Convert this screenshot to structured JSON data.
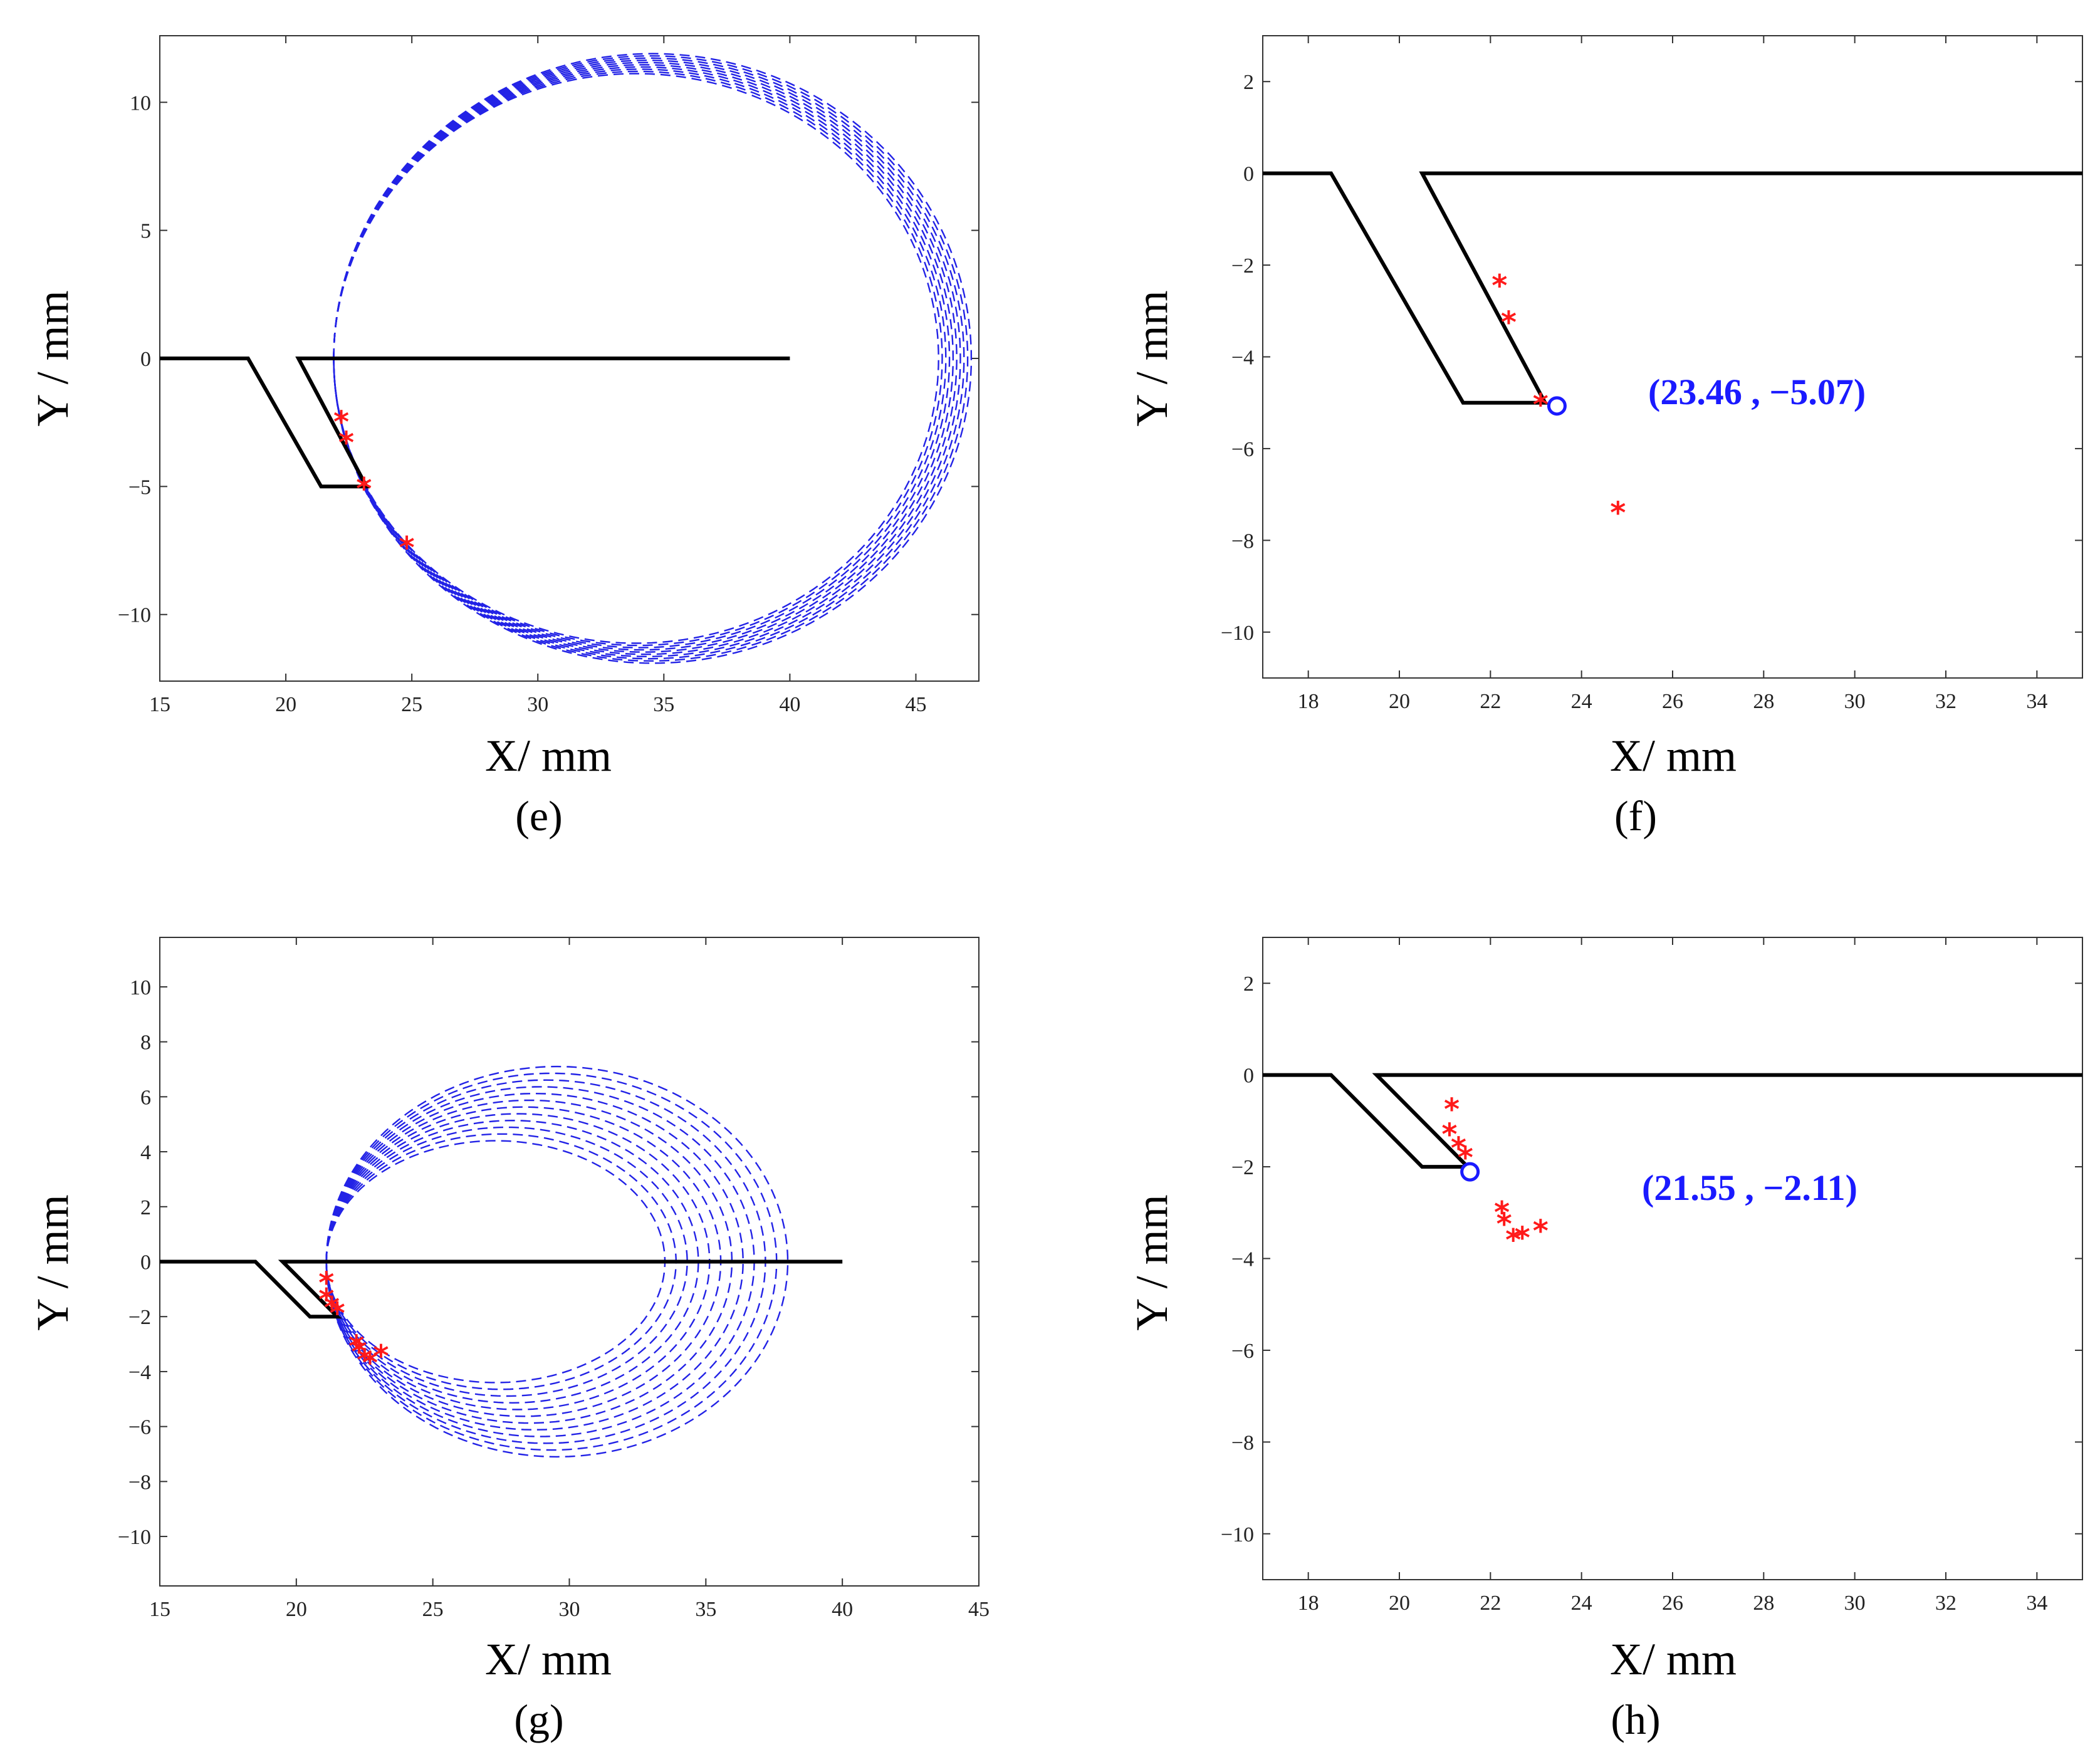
{
  "colors": {
    "geometry": "#000000",
    "trajectory": "#2222e6",
    "points": "#ff1a1a",
    "annotation": "#1a1aff"
  },
  "chart_data": [
    {
      "panel": "e",
      "type": "line",
      "caption": "(e)",
      "xlabel": "X/ mm",
      "ylabel": "Y / mm",
      "xlim": [
        15,
        47.5
      ],
      "ylim": [
        -12.6,
        12.6
      ],
      "xticks": [
        15,
        20,
        25,
        30,
        35,
        40,
        45
      ],
      "yticks": [
        -10,
        -5,
        0,
        5,
        10
      ],
      "geometry": [
        [
          15,
          0
        ],
        [
          18.5,
          0
        ],
        [
          21.4,
          -5
        ],
        [
          23.2,
          -5
        ],
        [
          20.5,
          0
        ],
        [
          40,
          0
        ]
      ],
      "loop": {
        "xmin": 21.9,
        "xmax": 47.2,
        "ymin": -11.9,
        "ymax": 11.9,
        "ystart": 0,
        "spread": 1.3,
        "count": 10
      },
      "points": [
        [
          22.2,
          -2.4
        ],
        [
          22.4,
          -3.2
        ],
        [
          23.1,
          -5.0
        ],
        [
          24.8,
          -7.3
        ]
      ],
      "marker": null,
      "annotation": ""
    },
    {
      "panel": "f",
      "type": "scatter",
      "caption": "(f)",
      "xlabel": "X/ mm",
      "ylabel": "Y / mm",
      "xlim": [
        17,
        35
      ],
      "ylim": [
        -11,
        3
      ],
      "xticks": [
        18,
        20,
        22,
        24,
        26,
        28,
        30,
        32,
        34
      ],
      "yticks": [
        -10,
        -8,
        -6,
        -4,
        -2,
        0,
        2
      ],
      "geometry": [
        [
          17,
          0
        ],
        [
          18.5,
          0
        ],
        [
          21.4,
          -5
        ],
        [
          23.2,
          -5
        ],
        [
          20.5,
          0
        ],
        [
          35,
          0
        ]
      ],
      "loop": null,
      "points": [
        [
          22.2,
          -2.4
        ],
        [
          22.4,
          -3.2
        ],
        [
          23.1,
          -5.0
        ],
        [
          24.8,
          -7.35
        ]
      ],
      "marker": [
        23.46,
        -5.07
      ],
      "annotation": "(23.46 , −5.07)"
    },
    {
      "panel": "g",
      "type": "line",
      "caption": "(g)",
      "xlabel": "X/ mm",
      "ylabel": "Y / mm",
      "xlim": [
        15,
        45
      ],
      "ylim": [
        -11.8,
        11.8
      ],
      "xticks": [
        15,
        20,
        25,
        30,
        35,
        40,
        45
      ],
      "yticks": [
        -10,
        -8,
        -6,
        -4,
        -2,
        0,
        2,
        4,
        6,
        8,
        10
      ],
      "geometry": [
        [
          15,
          0
        ],
        [
          18.5,
          0
        ],
        [
          20.5,
          -2
        ],
        [
          21.5,
          -2
        ],
        [
          19.5,
          0
        ],
        [
          40,
          0
        ]
      ],
      "loop": {
        "xmin": 21.1,
        "xmax": 38.0,
        "ymin": -7.1,
        "ymax": 7.1,
        "ystart": 0,
        "spread": 4.5,
        "count": 12
      },
      "points": [
        [
          21.1,
          -0.7
        ],
        [
          21.1,
          -1.3
        ],
        [
          21.3,
          -1.6
        ],
        [
          21.5,
          -1.8
        ],
        [
          22.2,
          -3.0
        ],
        [
          22.3,
          -3.2
        ],
        [
          22.5,
          -3.5
        ],
        [
          22.7,
          -3.6
        ],
        [
          23.1,
          -3.35
        ]
      ],
      "marker": null,
      "annotation": ""
    },
    {
      "panel": "h",
      "type": "scatter",
      "caption": "(h)",
      "xlabel": "X/ mm",
      "ylabel": "Y / mm",
      "xlim": [
        17,
        35
      ],
      "ylim": [
        -11,
        3
      ],
      "xticks": [
        18,
        20,
        22,
        24,
        26,
        28,
        30,
        32,
        34
      ],
      "yticks": [
        -10,
        -8,
        -6,
        -4,
        -2,
        0,
        2
      ],
      "geometry": [
        [
          17,
          0
        ],
        [
          18.5,
          0
        ],
        [
          20.5,
          -2
        ],
        [
          21.5,
          -2
        ],
        [
          19.5,
          0
        ],
        [
          35,
          0
        ]
      ],
      "loop": null,
      "points": [
        [
          21.15,
          -0.7
        ],
        [
          21.1,
          -1.25
        ],
        [
          21.3,
          -1.55
        ],
        [
          21.45,
          -1.75
        ],
        [
          22.25,
          -2.95
        ],
        [
          22.3,
          -3.2
        ],
        [
          22.5,
          -3.55
        ],
        [
          22.7,
          -3.5
        ],
        [
          23.1,
          -3.35
        ]
      ],
      "marker": [
        21.55,
        -2.11
      ],
      "annotation": "(21.55 , −2.11)"
    }
  ]
}
